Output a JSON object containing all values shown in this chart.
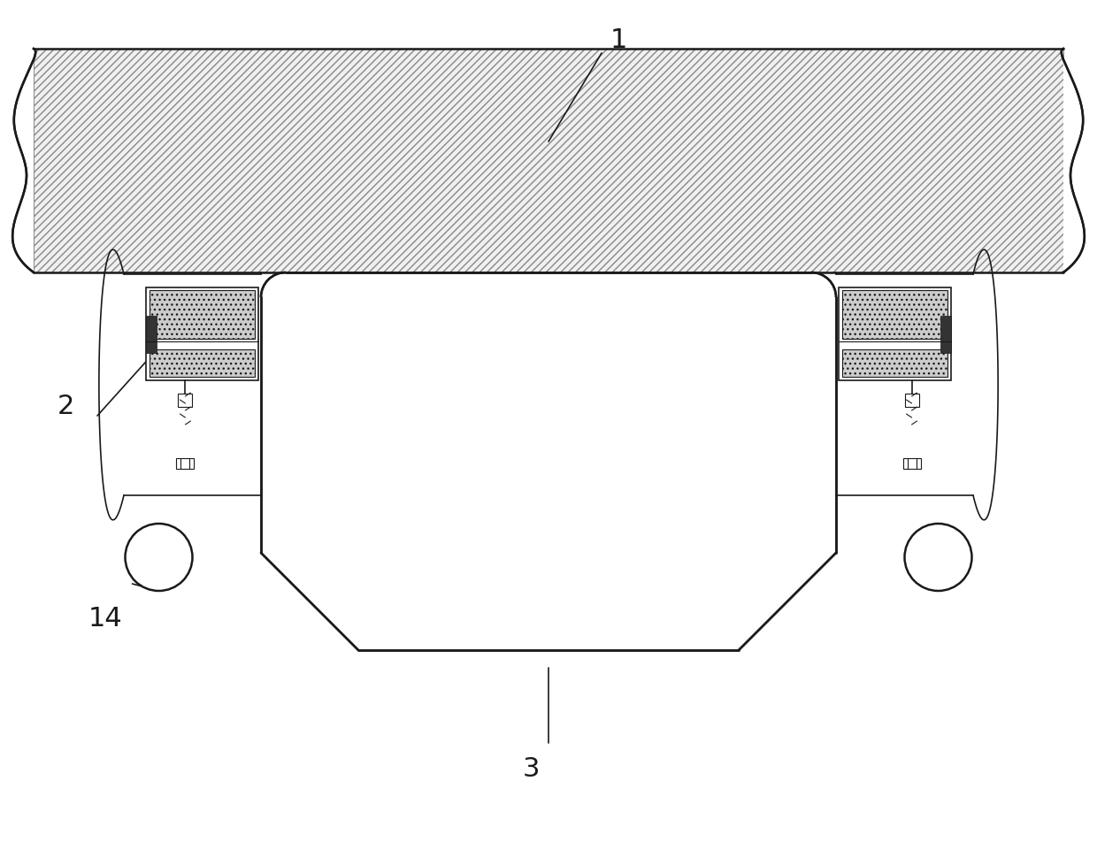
{
  "bg_color": "#ffffff",
  "line_color": "#1a1a1a",
  "label_1": "1",
  "label_2": "2",
  "label_3": "3",
  "label_14": "14",
  "label_fontsize": 22,
  "figsize": [
    12.4,
    9.61
  ],
  "dpi": 100
}
